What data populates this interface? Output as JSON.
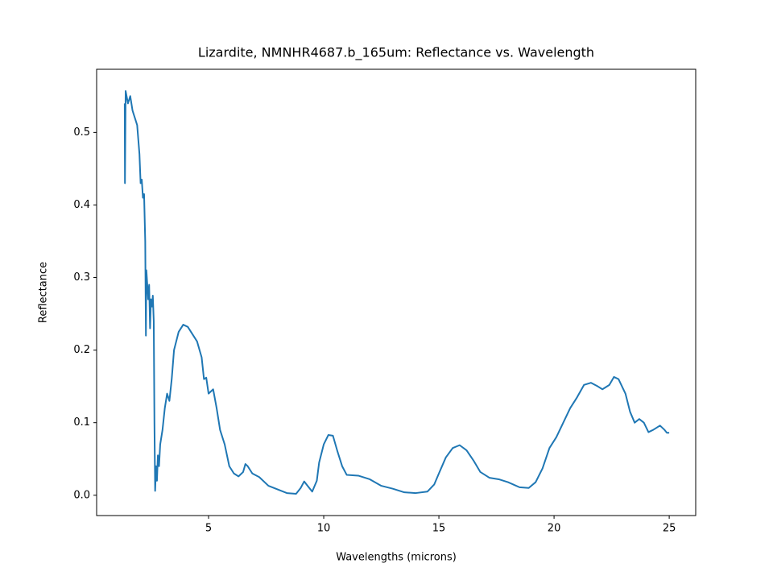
{
  "chart_data": {
    "type": "line",
    "title": "Lizardite, NMNHR4687.b_165um: Reflectance vs. Wavelength",
    "xlabel": "Wavelengths (microns)",
    "ylabel": "Reflectance",
    "x": [
      1.36,
      1.37,
      1.4,
      1.5,
      1.6,
      1.7,
      1.9,
      2.0,
      2.05,
      2.1,
      2.15,
      2.2,
      2.25,
      2.28,
      2.3,
      2.38,
      2.42,
      2.46,
      2.5,
      2.55,
      2.58,
      2.62,
      2.65,
      2.68,
      2.72,
      2.76,
      2.8,
      2.85,
      2.9,
      3.0,
      3.1,
      3.2,
      3.3,
      3.4,
      3.5,
      3.7,
      3.9,
      4.1,
      4.3,
      4.5,
      4.7,
      4.8,
      4.9,
      5.0,
      5.2,
      5.35,
      5.5,
      5.7,
      5.9,
      6.1,
      6.3,
      6.5,
      6.6,
      6.7,
      6.9,
      7.2,
      7.6,
      8.0,
      8.4,
      8.8,
      9.0,
      9.15,
      9.3,
      9.5,
      9.7,
      9.8,
      10.0,
      10.2,
      10.4,
      10.6,
      10.8,
      11.0,
      11.5,
      12.0,
      12.5,
      13.0,
      13.5,
      14.0,
      14.5,
      14.8,
      15.0,
      15.3,
      15.6,
      15.9,
      16.2,
      16.5,
      16.8,
      17.2,
      17.6,
      18.0,
      18.5,
      18.9,
      19.2,
      19.5,
      19.8,
      20.1,
      20.4,
      20.7,
      21.0,
      21.3,
      21.6,
      21.9,
      22.1,
      22.4,
      22.6,
      22.8,
      23.1,
      23.3,
      23.5,
      23.7,
      23.9,
      24.1,
      24.3,
      24.6,
      24.8,
      24.9,
      25.0
    ],
    "series": [
      {
        "color": "#1f77b4",
        "values": [
          0.54,
          0.43,
          0.557,
          0.54,
          0.55,
          0.53,
          0.51,
          0.47,
          0.43,
          0.435,
          0.41,
          0.415,
          0.35,
          0.22,
          0.31,
          0.27,
          0.29,
          0.23,
          0.27,
          0.26,
          0.275,
          0.24,
          0.1,
          0.006,
          0.04,
          0.02,
          0.055,
          0.04,
          0.07,
          0.09,
          0.12,
          0.14,
          0.13,
          0.16,
          0.2,
          0.225,
          0.235,
          0.232,
          0.222,
          0.212,
          0.19,
          0.16,
          0.162,
          0.14,
          0.146,
          0.12,
          0.09,
          0.07,
          0.04,
          0.03,
          0.026,
          0.032,
          0.043,
          0.04,
          0.03,
          0.025,
          0.013,
          0.008,
          0.003,
          0.002,
          0.01,
          0.019,
          0.013,
          0.005,
          0.02,
          0.045,
          0.07,
          0.083,
          0.082,
          0.06,
          0.04,
          0.028,
          0.027,
          0.022,
          0.013,
          0.009,
          0.004,
          0.003,
          0.005,
          0.015,
          0.03,
          0.052,
          0.065,
          0.069,
          0.062,
          0.048,
          0.032,
          0.024,
          0.022,
          0.018,
          0.011,
          0.01,
          0.018,
          0.037,
          0.065,
          0.08,
          0.1,
          0.12,
          0.135,
          0.152,
          0.155,
          0.15,
          0.146,
          0.152,
          0.163,
          0.16,
          0.14,
          0.115,
          0.1,
          0.105,
          0.1,
          0.087,
          0.09,
          0.096,
          0.09,
          0.086,
          0.086
        ]
      }
    ],
    "xlim": [
      0.14,
      26.15
    ],
    "ylim": [
      -0.028,
      0.587
    ],
    "xticks": [
      5,
      10,
      15,
      20,
      25
    ],
    "yticks": [
      {
        "value": 0,
        "label": "0.0"
      },
      0.1,
      0.2,
      0.3,
      0.4,
      0.5
    ]
  }
}
